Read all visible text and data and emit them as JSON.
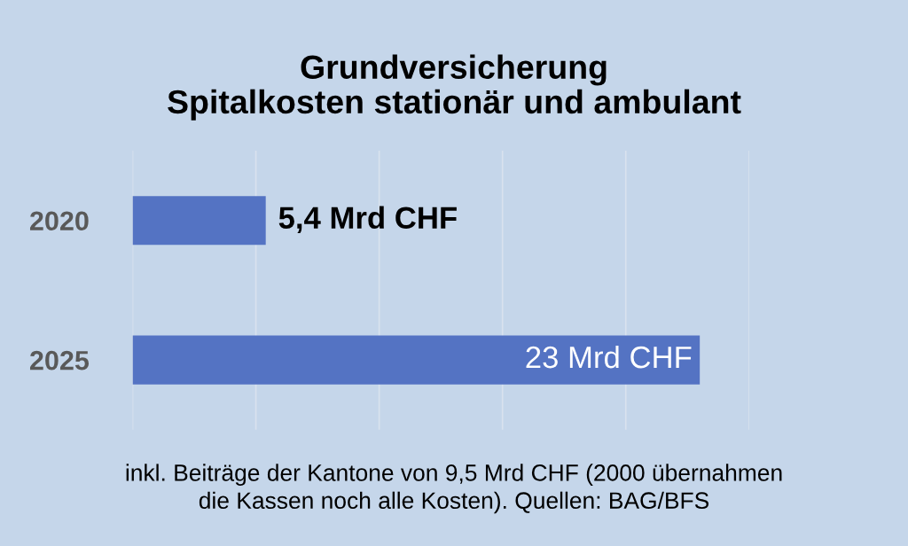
{
  "chart_data": {
    "type": "bar",
    "orientation": "horizontal",
    "title": "Grundversicherung\nSpitalkosten stationär und ambulant",
    "categories": [
      "2020",
      "2025"
    ],
    "series": [
      {
        "color": "#5473c3",
        "values": [
          5.4,
          23
        ],
        "value_labels": [
          "5,4 Mrd CHF",
          "23 Mrd CHF"
        ]
      }
    ],
    "xlim": [
      0,
      25
    ],
    "xticks": [
      {
        "value": 0,
        "label": null
      },
      {
        "value": 5,
        "label": null
      },
      {
        "value": 10,
        "label": null
      },
      {
        "value": 15,
        "label": null
      },
      {
        "value": 20,
        "label": null
      },
      {
        "value": 25,
        "label": null
      }
    ],
    "grid": "x",
    "annotations": [
      "inkl. Beiträge der Kantone von 9,5 Mrd CHF (2000 übernahmen\ndie Kassen noch alle Kosten). Quellen: BAG/BFS"
    ]
  }
}
